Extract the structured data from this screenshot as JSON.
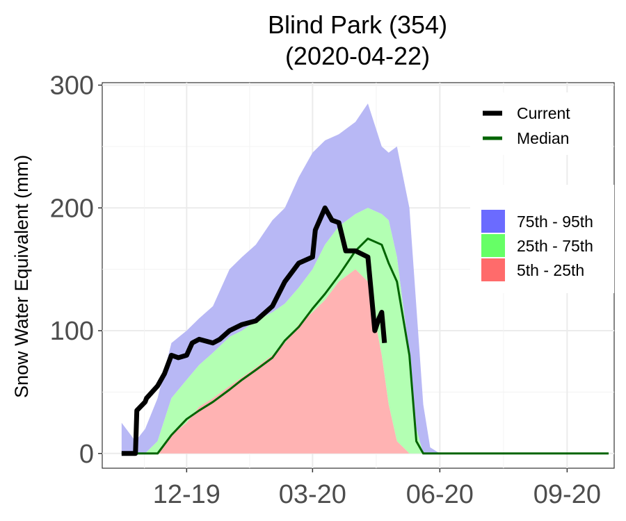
{
  "chart_data": {
    "type": "area",
    "title": "Blind Park (354)",
    "subtitle": "(2020-04-22)",
    "xlabel": "",
    "ylabel": "Snow Water Equivalent (mm)",
    "ylim": [
      -12,
      302
    ],
    "xlim": [
      "2019-10-01",
      "2020-10-05"
    ],
    "x_ticks": [
      {
        "date": "2019-12-01",
        "label": "12-19"
      },
      {
        "date": "2020-03-01",
        "label": "03-20"
      },
      {
        "date": "2020-06-01",
        "label": "06-20"
      },
      {
        "date": "2020-09-01",
        "label": "09-20"
      }
    ],
    "y_ticks": [
      {
        "value": 0,
        "label": "0"
      },
      {
        "value": 100,
        "label": "100"
      },
      {
        "value": 200,
        "label": "200"
      },
      {
        "value": 300,
        "label": "300"
      }
    ],
    "grid": true,
    "legend_lines": [
      {
        "label": "Current",
        "color": "#000000"
      },
      {
        "label": "Median",
        "color": "#006400"
      }
    ],
    "legend_bands": [
      {
        "label": "75th - 95th",
        "color": "#6b6bff"
      },
      {
        "label": "25th - 75th",
        "color": "#66ff66"
      },
      {
        "label": "5th - 25th",
        "color": "#ff6b6b"
      }
    ],
    "legend_position": "top-right",
    "band_colors": {
      "p5_25": "#ffb3b3",
      "p25_75": "#b3ffb3",
      "p75_95": "#b8b8f5"
    },
    "dates": [
      "2019-10-15",
      "2019-10-25",
      "2019-11-01",
      "2019-11-10",
      "2019-11-20",
      "2019-12-01",
      "2019-12-10",
      "2019-12-20",
      "2020-01-01",
      "2020-01-10",
      "2020-01-20",
      "2020-02-01",
      "2020-02-10",
      "2020-02-20",
      "2020-03-01",
      "2020-03-10",
      "2020-03-20",
      "2020-04-01",
      "2020-04-10",
      "2020-04-20",
      "2020-04-25",
      "2020-05-01",
      "2020-05-10",
      "2020-05-15",
      "2020-05-20",
      "2020-05-25",
      "2020-06-01",
      "2020-06-15",
      "2020-07-01",
      "2020-08-01",
      "2020-09-01",
      "2020-09-15",
      "2020-10-01"
    ],
    "p5": [
      0,
      0,
      0,
      0,
      0,
      0,
      0,
      0,
      0,
      0,
      0,
      0,
      0,
      0,
      0,
      0,
      0,
      0,
      0,
      0,
      0,
      0,
      0,
      0,
      0,
      0,
      0,
      0,
      0,
      0,
      0,
      0,
      0
    ],
    "p25": [
      0,
      0,
      0,
      0,
      15,
      25,
      38,
      45,
      55,
      62,
      70,
      80,
      90,
      105,
      115,
      125,
      140,
      150,
      140,
      80,
      40,
      10,
      0,
      0,
      0,
      0,
      0,
      0,
      0,
      0,
      0,
      0,
      0
    ],
    "p75": [
      0,
      0,
      0,
      10,
      45,
      60,
      72,
      82,
      95,
      100,
      108,
      115,
      122,
      135,
      150,
      170,
      185,
      195,
      200,
      195,
      190,
      160,
      80,
      20,
      0,
      0,
      0,
      0,
      0,
      0,
      0,
      0,
      0
    ],
    "p95": [
      25,
      10,
      20,
      45,
      90,
      100,
      110,
      120,
      150,
      160,
      170,
      190,
      200,
      225,
      245,
      255,
      260,
      270,
      285,
      250,
      245,
      250,
      200,
      120,
      40,
      5,
      0,
      0,
      0,
      0,
      0,
      0,
      0
    ],
    "median": [
      0,
      0,
      0,
      0,
      15,
      28,
      35,
      42,
      52,
      60,
      68,
      78,
      92,
      103,
      118,
      130,
      145,
      165,
      175,
      170,
      155,
      140,
      80,
      10,
      0,
      0,
      0,
      0,
      0,
      0,
      0,
      0,
      0
    ],
    "current_dates": [
      "2019-10-15",
      "2019-10-25",
      "2019-10-26",
      "2019-11-01",
      "2019-11-02",
      "2019-11-10",
      "2019-11-15",
      "2019-11-20",
      "2019-11-25",
      "2019-12-01",
      "2019-12-05",
      "2019-12-10",
      "2019-12-20",
      "2019-12-25",
      "2020-01-01",
      "2020-01-10",
      "2020-01-20",
      "2020-02-01",
      "2020-02-10",
      "2020-02-20",
      "2020-03-01",
      "2020-03-03",
      "2020-03-10",
      "2020-03-15",
      "2020-03-20",
      "2020-03-25",
      "2020-04-01",
      "2020-04-10",
      "2020-04-15",
      "2020-04-18",
      "2020-04-20",
      "2020-04-22"
    ],
    "current": [
      0,
      0,
      35,
      42,
      45,
      55,
      65,
      80,
      78,
      80,
      90,
      93,
      90,
      93,
      100,
      105,
      108,
      120,
      140,
      155,
      160,
      182,
      200,
      190,
      188,
      165,
      165,
      160,
      100,
      110,
      115,
      90
    ]
  }
}
